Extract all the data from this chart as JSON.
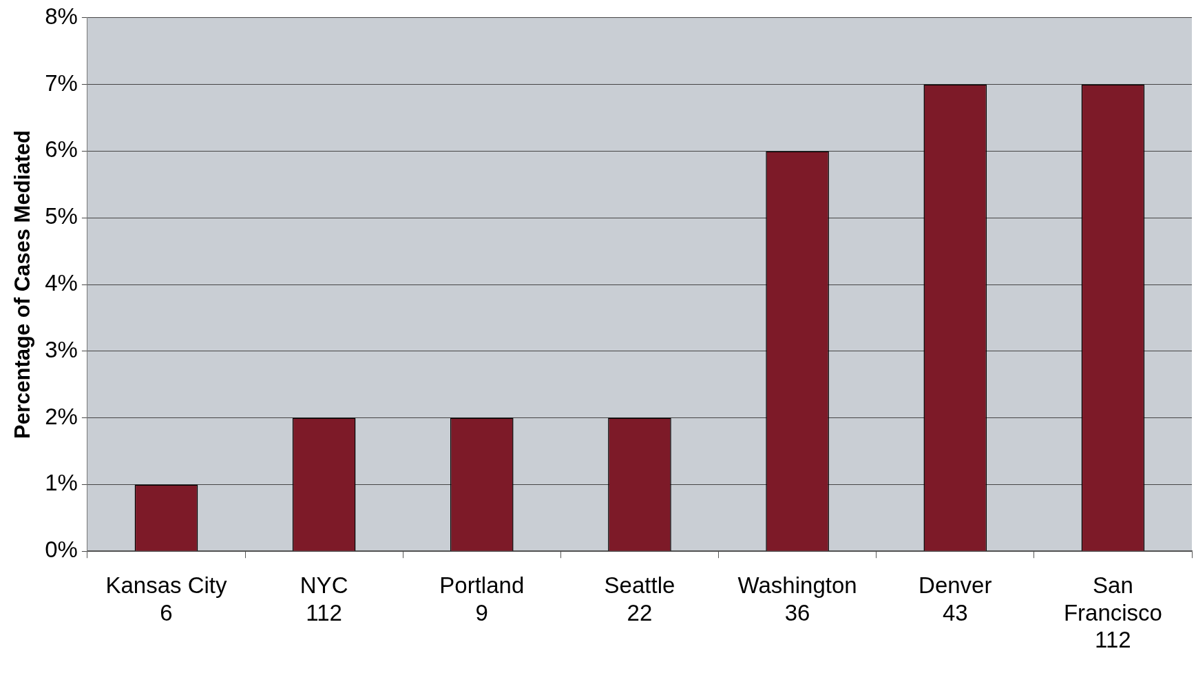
{
  "chart_data": {
    "type": "bar",
    "ylabel": "Percentage of Cases Mediated",
    "categories": [
      "Kansas City\n6",
      "NYC\n112",
      "Portland\n9",
      "Seattle\n22",
      "Washington\n36",
      "Denver\n43",
      "San\nFrancisco\n112"
    ],
    "values": [
      1,
      2,
      2,
      2,
      6,
      7,
      7
    ],
    "color": "#7d1a28",
    "ylim": [
      0,
      8
    ],
    "yticks": [
      {
        "value": 0,
        "label": "0%"
      },
      {
        "value": 1,
        "label": "1%"
      },
      {
        "value": 2,
        "label": "2%"
      },
      {
        "value": 3,
        "label": "3%"
      },
      {
        "value": 4,
        "label": "4%"
      },
      {
        "value": 5,
        "label": "5%"
      },
      {
        "value": 6,
        "label": "6%"
      },
      {
        "value": 7,
        "label": "7%"
      },
      {
        "value": 8,
        "label": "8%"
      }
    ],
    "grid": "y",
    "legend": false
  }
}
